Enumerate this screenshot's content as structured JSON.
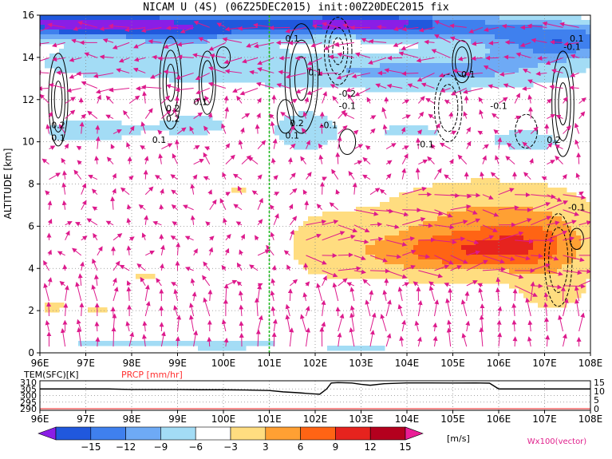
{
  "chart_data": [
    {
      "type": "heatmap",
      "title": "NICAM U (4S) (06Z25DEC2015) init:00Z20DEC2015 fix",
      "ylabel": "ALTITUDE [km]",
      "x_tick_labels": [
        "96E",
        "97E",
        "98E",
        "99E",
        "100E",
        "101E",
        "102E",
        "103E",
        "104E",
        "105E",
        "106E",
        "107E",
        "108E"
      ],
      "x_ticks": [
        96,
        97,
        98,
        99,
        100,
        101,
        102,
        103,
        104,
        105,
        106,
        107,
        108
      ],
      "xlim": [
        96,
        108
      ],
      "y_ticks": [
        0,
        2,
        4,
        6,
        8,
        10,
        12,
        14,
        16
      ],
      "y_tick_labels": [
        "0",
        "2",
        "4",
        "6",
        "8",
        "10",
        "12",
        "14",
        "16"
      ],
      "ylim": [
        0,
        16
      ],
      "reference_line_x": 101,
      "variable": "zonal wind U [m/s], shaded",
      "blobs": [
        {
          "x": 96.0,
          "y": 15.6,
          "sx": 1.4,
          "sy": 0.6,
          "v": -9
        },
        {
          "x": 97.5,
          "y": 15.6,
          "sx": 1.8,
          "sy": 0.6,
          "v": -12
        },
        {
          "x": 99.5,
          "y": 15.4,
          "sx": 2.0,
          "sy": 0.7,
          "v": -10
        },
        {
          "x": 101.5,
          "y": 15.6,
          "sx": 1.5,
          "sy": 0.6,
          "v": -9
        },
        {
          "x": 103.2,
          "y": 15.6,
          "sx": 1.2,
          "sy": 0.5,
          "v": -13
        },
        {
          "x": 105.0,
          "y": 15.5,
          "sx": 1.8,
          "sy": 0.7,
          "v": -9
        },
        {
          "x": 107.4,
          "y": 14.8,
          "sx": 1.6,
          "sy": 0.9,
          "v": -11
        },
        {
          "x": 97.5,
          "y": 13.8,
          "sx": 2.0,
          "sy": 0.9,
          "v": -5
        },
        {
          "x": 100.5,
          "y": 13.5,
          "sx": 2.0,
          "sy": 0.9,
          "v": -5
        },
        {
          "x": 103.5,
          "y": 13.3,
          "sx": 2.0,
          "sy": 1.0,
          "v": -5
        },
        {
          "x": 106.0,
          "y": 13.4,
          "sx": 2.0,
          "sy": 1.0,
          "v": -5
        },
        {
          "x": 97.0,
          "y": 10.5,
          "sx": 1.5,
          "sy": 0.9,
          "v": -4
        },
        {
          "x": 99.5,
          "y": 10.8,
          "sx": 1.2,
          "sy": 0.8,
          "v": -3.5
        },
        {
          "x": 101.8,
          "y": 10.5,
          "sx": 0.8,
          "sy": 1.2,
          "v": -5
        },
        {
          "x": 104.0,
          "y": 10.5,
          "sx": 1.2,
          "sy": 0.6,
          "v": -3.5
        },
        {
          "x": 106.6,
          "y": 10.0,
          "sx": 1.5,
          "sy": 1.0,
          "v": -4
        },
        {
          "x": 105.8,
          "y": 6.4,
          "sx": 2.8,
          "sy": 2.2,
          "v": 6
        },
        {
          "x": 105.5,
          "y": 4.8,
          "sx": 1.7,
          "sy": 0.9,
          "v": 5
        },
        {
          "x": 106.7,
          "y": 5.2,
          "sx": 1.2,
          "sy": 1.2,
          "v": 5
        },
        {
          "x": 104.3,
          "y": 4.5,
          "sx": 1.6,
          "sy": 1.4,
          "v": 4
        },
        {
          "x": 107.2,
          "y": 3.0,
          "sx": 1.0,
          "sy": 1.5,
          "v": 4
        },
        {
          "x": 102.2,
          "y": 5.0,
          "sx": 1.0,
          "sy": 1.8,
          "v": 4
        },
        {
          "x": 96.3,
          "y": 2.2,
          "sx": 0.35,
          "sy": 0.35,
          "v": 4.5
        },
        {
          "x": 97.3,
          "y": 2.1,
          "sx": 0.35,
          "sy": 0.25,
          "v": 4.5
        },
        {
          "x": 98.3,
          "y": 3.6,
          "sx": 0.35,
          "sy": 0.25,
          "v": 4.5
        },
        {
          "x": 100.3,
          "y": 7.7,
          "sx": 0.25,
          "sy": 0.25,
          "v": 4.5
        },
        {
          "x": 97.5,
          "y": 0.4,
          "sx": 1.8,
          "sy": 0.35,
          "v": -3.5
        },
        {
          "x": 100.2,
          "y": 0.4,
          "sx": 1.5,
          "sy": 0.35,
          "v": -3.5
        },
        {
          "x": 103.0,
          "y": 0.3,
          "sx": 1.5,
          "sy": 0.3,
          "v": -3.5
        }
      ],
      "contour_labels": [
        {
          "text": "0.1",
          "x": 101.5,
          "y": 14.9
        },
        {
          "text": "0.1",
          "x": 102.0,
          "y": 13.3
        },
        {
          "text": "-0.2",
          "x": 102.7,
          "y": 12.3
        },
        {
          "text": "-0.1",
          "x": 102.7,
          "y": 11.7
        },
        {
          "text": "0.2",
          "x": 98.9,
          "y": 11.6
        },
        {
          "text": "0.1",
          "x": 99.5,
          "y": 11.9
        },
        {
          "text": "0.2",
          "x": 98.9,
          "y": 11.1
        },
        {
          "text": "0.1",
          "x": 98.6,
          "y": 10.1
        },
        {
          "text": "0.2",
          "x": 96.4,
          "y": 10.8
        },
        {
          "text": "0.1",
          "x": 96.4,
          "y": 10.2
        },
        {
          "text": "0.2",
          "x": 101.6,
          "y": 10.9
        },
        {
          "text": "0.1",
          "x": 101.5,
          "y": 10.3
        },
        {
          "text": "-0.1",
          "x": 102.3,
          "y": 10.8
        },
        {
          "text": "-0.1",
          "x": 105.3,
          "y": 13.2
        },
        {
          "text": "-0.1",
          "x": 104.4,
          "y": 9.9
        },
        {
          "text": "-0.1",
          "x": 107.6,
          "y": 14.5
        },
        {
          "text": "0.1",
          "x": 107.7,
          "y": 14.9
        },
        {
          "text": "-0.1",
          "x": 106.0,
          "y": 11.7
        },
        {
          "text": "0.2",
          "x": 107.2,
          "y": 10.1
        },
        {
          "text": "-0.1",
          "x": 107.7,
          "y": 6.9
        }
      ]
    },
    {
      "type": "line",
      "title": "TEM(SFC)[K]",
      "title2": "PRCP [mm/hr]",
      "xlim": [
        96,
        108
      ],
      "x_tick_labels": [
        "96E",
        "97E",
        "98E",
        "99E",
        "100E",
        "101E",
        "102E",
        "103E",
        "104E",
        "105E",
        "106E",
        "107E",
        "108E"
      ],
      "left_y_ticks": [
        "310",
        "305",
        "300",
        "295",
        "290"
      ],
      "left_y_values": [
        310,
        305,
        300,
        295,
        290
      ],
      "right_y_ticks": [
        "15",
        "10",
        "5",
        "0"
      ],
      "right_y_values": [
        15,
        10,
        5,
        0
      ],
      "series": [
        {
          "name": "TEM(SFC)[K]",
          "axis": "left",
          "x": [
            96.0,
            96.5,
            97.0,
            97.5,
            98.0,
            98.5,
            99.0,
            99.5,
            100.0,
            100.5,
            101.0,
            101.3,
            101.6,
            101.9,
            102.1,
            102.25,
            102.35,
            102.5,
            102.8,
            103.0,
            103.2,
            103.5,
            104.0,
            104.5,
            105.0,
            105.5,
            105.8,
            106.0,
            106.5,
            107.0,
            107.5,
            108.0
          ],
          "y": [
            305,
            305,
            305,
            305,
            304.6,
            304.6,
            304.6,
            304.4,
            304.4,
            304.2,
            303.8,
            302.8,
            302.2,
            301.4,
            301.0,
            305,
            309.5,
            309.8,
            309.5,
            308.5,
            307.8,
            309,
            309.6,
            309.6,
            309.5,
            309.6,
            309.4,
            305,
            305,
            305,
            305,
            305
          ]
        },
        {
          "name": "PRCP [mm/hr]",
          "axis": "right",
          "x": [
            96,
            108
          ],
          "y": [
            0,
            0
          ]
        }
      ]
    }
  ],
  "colorbar": {
    "levels": [
      "-15",
      "-12",
      "-9",
      "-6",
      "-3",
      "3",
      "6",
      "9",
      "12",
      "15"
    ],
    "colors": [
      "#8a1ee6",
      "#2058dd",
      "#3f80ee",
      "#6eaaf5",
      "#a3dcf5",
      "#ffffff",
      "#ffdd80",
      "#ffa033",
      "#ff6414",
      "#e6231e",
      "#b4001e",
      "#ea1e96"
    ],
    "unit": "[m/s]"
  },
  "vector_label": "Wx100(vector)",
  "colors": {
    "vector": "#dd1a8c",
    "contour": "#000000",
    "reference_line": "#22bb22",
    "prcp_line": "#ff2222",
    "prcp_label": "#ff3030",
    "vector_label": "#e0208c"
  }
}
